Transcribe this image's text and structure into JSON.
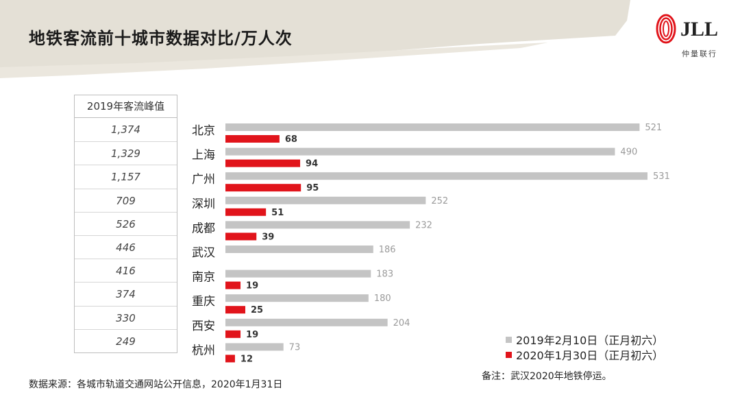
{
  "title": "地铁客流前十城市数据对比/万人次",
  "logo": {
    "name": "JLL",
    "sub": "仲量联行"
  },
  "peak_table": {
    "header": "2019年客流峰值",
    "values": [
      "1,374",
      "1,329",
      "1,157",
      "709",
      "526",
      "446",
      "416",
      "374",
      "330",
      "249"
    ]
  },
  "chart_data": {
    "type": "bar",
    "orientation": "horizontal",
    "categories": [
      "北京",
      "上海",
      "广州",
      "深圳",
      "成都",
      "武汉",
      "南京",
      "重庆",
      "西安",
      "杭州"
    ],
    "series": [
      {
        "name": "2019年2月10日（正月初六）",
        "color": "#c4c4c4",
        "label_color": "#9a9a9a",
        "values": [
          521,
          490,
          531,
          252,
          232,
          186,
          183,
          180,
          204,
          73
        ]
      },
      {
        "name": "2020年1月30日（正月初六）",
        "color": "#e1141b",
        "label_color": "#333333",
        "values": [
          68,
          94,
          95,
          51,
          39,
          null,
          19,
          25,
          19,
          12
        ]
      }
    ],
    "legend_position": "bottom-right",
    "grid": false
  },
  "source": "数据来源：各城市轨道交通网站公开信息，2020年1月31日",
  "note": "备注：武汉2020年地铁停运。"
}
